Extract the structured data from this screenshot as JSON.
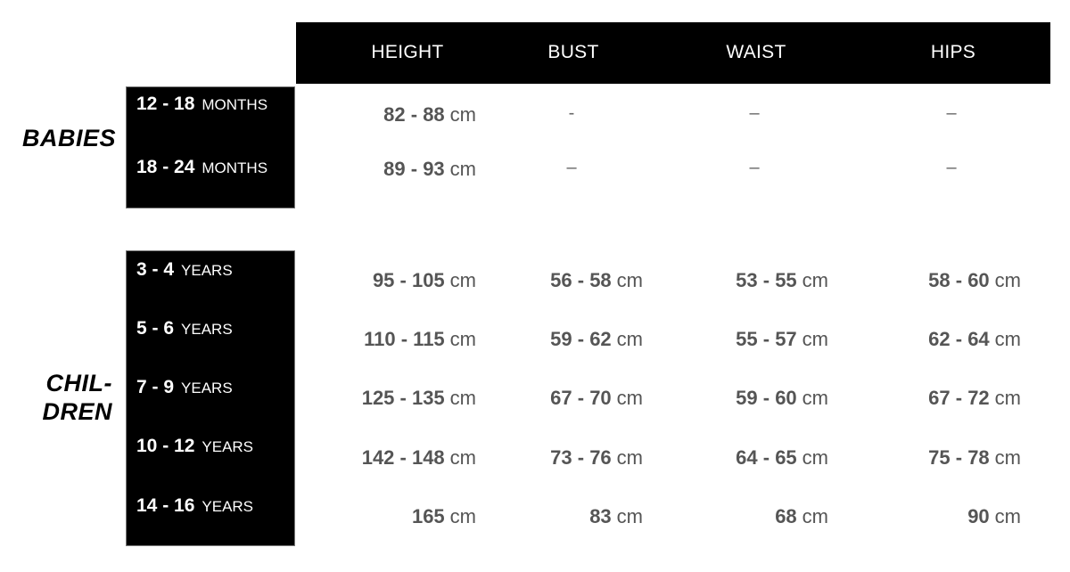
{
  "headers": [
    "HEIGHT",
    "BUST",
    "WAIST",
    "HIPS"
  ],
  "groups": {
    "babies": {
      "label": "BABIES",
      "rows": [
        {
          "age": "12 - 18",
          "unit": "MONTHS",
          "height": {
            "num": "82 - 88",
            "unit": "cm"
          },
          "bust": "-",
          "waist": "–",
          "hips": "–"
        },
        {
          "age": "18 - 24",
          "unit": "MONTHS",
          "height": {
            "num": "89 - 93",
            "unit": "cm"
          },
          "bust": "–",
          "waist": "–",
          "hips": "–"
        }
      ]
    },
    "children": {
      "label_line1": "CHIL-",
      "label_line2": "DREN",
      "rows": [
        {
          "age": "3 - 4",
          "unit": "YEARS",
          "height": {
            "num": "95 - 105",
            "unit": "cm"
          },
          "bust": {
            "num": "56 - 58",
            "unit": "cm"
          },
          "waist": {
            "num": "53 - 55",
            "unit": "cm"
          },
          "hips": {
            "num": "58 - 60",
            "unit": "cm"
          }
        },
        {
          "age": "5 - 6",
          "unit": "YEARS",
          "height": {
            "num": "110 - 115",
            "unit": "cm"
          },
          "bust": {
            "num": "59 - 62",
            "unit": "cm"
          },
          "waist": {
            "num": "55 - 57",
            "unit": "cm"
          },
          "hips": {
            "num": "62 - 64",
            "unit": "cm"
          }
        },
        {
          "age": "7 - 9",
          "unit": "YEARS",
          "height": {
            "num": "125 - 135",
            "unit": "cm"
          },
          "bust": {
            "num": "67 - 70",
            "unit": "cm"
          },
          "waist": {
            "num": "59 - 60",
            "unit": "cm"
          },
          "hips": {
            "num": "67 - 72",
            "unit": "cm"
          }
        },
        {
          "age": "10 - 12",
          "unit": "YEARS",
          "height": {
            "num": "142 - 148",
            "unit": "cm"
          },
          "bust": {
            "num": "73 - 76",
            "unit": "cm"
          },
          "waist": {
            "num": "64 - 65",
            "unit": "cm"
          },
          "hips": {
            "num": "75 - 78",
            "unit": "cm"
          }
        },
        {
          "age": "14 - 16",
          "unit": "YEARS",
          "height": {
            "num": "165",
            "unit": "cm"
          },
          "bust": {
            "num": "83",
            "unit": "cm"
          },
          "waist": {
            "num": "68",
            "unit": "cm"
          },
          "hips": {
            "num": "90",
            "unit": "cm"
          }
        }
      ]
    }
  }
}
